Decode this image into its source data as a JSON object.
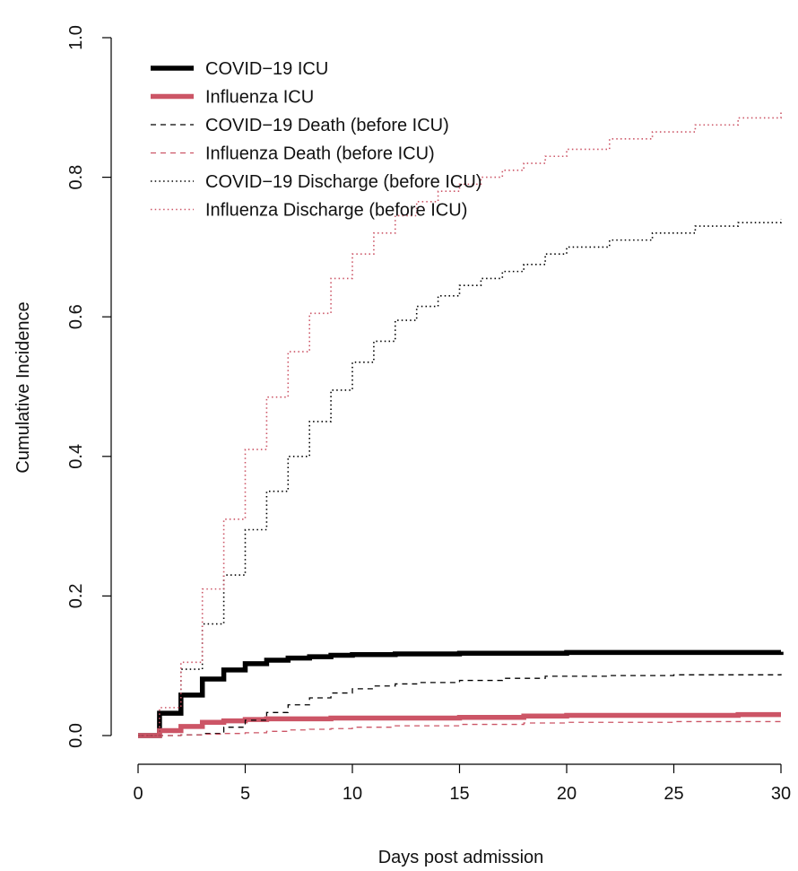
{
  "chart_data": {
    "type": "line",
    "xlabel": "Days post admission",
    "ylabel": "Cumulative Incidence",
    "xlim": [
      0,
      30
    ],
    "ylim": [
      0,
      1.0
    ],
    "x_ticks": [
      0,
      5,
      10,
      15,
      20,
      25,
      30
    ],
    "y_ticks": [
      0.0,
      0.2,
      0.4,
      0.6,
      0.8,
      1.0
    ],
    "x_tick_labels": [
      "0",
      "5",
      "10",
      "15",
      "20",
      "25",
      "30"
    ],
    "y_tick_labels": [
      "0.0",
      "0.2",
      "0.4",
      "0.6",
      "0.8",
      "1.0"
    ],
    "grid": false,
    "legend_position": "top-left",
    "series": [
      {
        "name": "COVID−19 ICU",
        "color": "#000000",
        "style": "solid-thick",
        "x": [
          0,
          1,
          2,
          3,
          4,
          5,
          6,
          7,
          8,
          9,
          10,
          12,
          15,
          20,
          25,
          30
        ],
        "y": [
          0.0,
          0.032,
          0.058,
          0.081,
          0.094,
          0.103,
          0.108,
          0.111,
          0.113,
          0.115,
          0.116,
          0.117,
          0.118,
          0.119,
          0.119,
          0.12
        ]
      },
      {
        "name": "Influenza ICU",
        "color": "#cc5566",
        "style": "solid-thick",
        "x": [
          0,
          1,
          2,
          3,
          4,
          5,
          6,
          9,
          12,
          15,
          18,
          20,
          25,
          28,
          30
        ],
        "y": [
          0.0,
          0.007,
          0.013,
          0.019,
          0.021,
          0.023,
          0.024,
          0.025,
          0.025,
          0.026,
          0.028,
          0.029,
          0.029,
          0.03,
          0.03
        ]
      },
      {
        "name": "COVID−19 Death (before ICU)",
        "color": "#000000",
        "style": "dashed",
        "x": [
          0,
          1,
          2,
          3,
          4,
          5,
          6,
          7,
          8,
          9,
          10,
          11,
          12,
          13,
          15,
          17,
          19,
          22,
          25,
          30
        ],
        "y": [
          0.0,
          0.0,
          0.001,
          0.003,
          0.012,
          0.022,
          0.033,
          0.044,
          0.054,
          0.061,
          0.067,
          0.071,
          0.074,
          0.076,
          0.079,
          0.082,
          0.085,
          0.086,
          0.087,
          0.088
        ]
      },
      {
        "name": "Influenza Death (before ICU)",
        "color": "#cc5566",
        "style": "dashed",
        "x": [
          0,
          1,
          2,
          3,
          4,
          5,
          6,
          7,
          8,
          9,
          10,
          12,
          15,
          18,
          20,
          25,
          30
        ],
        "y": [
          0.0,
          0.0,
          0.001,
          0.002,
          0.003,
          0.004,
          0.006,
          0.008,
          0.009,
          0.01,
          0.012,
          0.014,
          0.016,
          0.018,
          0.019,
          0.02,
          0.022
        ]
      },
      {
        "name": "COVID−19 Discharge (before ICU)",
        "color": "#000000",
        "style": "dotted",
        "x": [
          0,
          1,
          2,
          3,
          4,
          5,
          6,
          7,
          8,
          9,
          10,
          11,
          12,
          13,
          14,
          15,
          16,
          17,
          18,
          19,
          20,
          22,
          24,
          26,
          28,
          30
        ],
        "y": [
          0.0,
          0.03,
          0.095,
          0.16,
          0.23,
          0.295,
          0.35,
          0.4,
          0.45,
          0.495,
          0.535,
          0.565,
          0.595,
          0.615,
          0.63,
          0.645,
          0.655,
          0.665,
          0.675,
          0.69,
          0.7,
          0.71,
          0.72,
          0.73,
          0.735,
          0.74
        ]
      },
      {
        "name": "Influenza Discharge (before ICU)",
        "color": "#cc5566",
        "style": "dotted",
        "x": [
          0,
          1,
          2,
          3,
          4,
          5,
          6,
          7,
          8,
          9,
          10,
          11,
          12,
          13,
          14,
          15,
          16,
          17,
          18,
          19,
          20,
          22,
          24,
          26,
          28,
          30
        ],
        "y": [
          0.0,
          0.04,
          0.105,
          0.21,
          0.31,
          0.41,
          0.485,
          0.55,
          0.605,
          0.655,
          0.69,
          0.72,
          0.745,
          0.765,
          0.78,
          0.79,
          0.8,
          0.81,
          0.82,
          0.83,
          0.84,
          0.855,
          0.865,
          0.875,
          0.885,
          0.893
        ]
      }
    ]
  }
}
